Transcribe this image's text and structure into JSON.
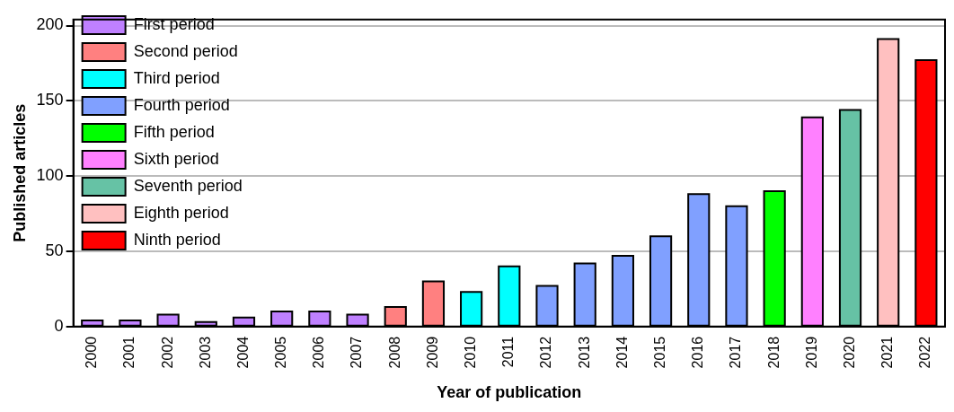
{
  "chart_data": {
    "type": "bar",
    "xlabel": "Year of publication",
    "ylabel": "Published articles",
    "categories": [
      "2000",
      "2001",
      "2002",
      "2003",
      "2004",
      "2005",
      "2006",
      "2007",
      "2008",
      "2009",
      "2010",
      "2011",
      "2012",
      "2013",
      "2014",
      "2015",
      "2016",
      "2017",
      "2018",
      "2019",
      "2020",
      "2021",
      "2022"
    ],
    "series": [
      {
        "name": "First period",
        "color": "#bf80ff",
        "values": [
          4,
          4,
          8,
          3,
          6,
          10,
          10,
          8,
          null,
          null,
          null,
          null,
          null,
          null,
          null,
          null,
          null,
          null,
          null,
          null,
          null,
          null,
          null
        ]
      },
      {
        "name": "Second period",
        "color": "#ff8080",
        "values": [
          null,
          null,
          null,
          null,
          null,
          null,
          null,
          null,
          13,
          30,
          null,
          null,
          null,
          null,
          null,
          null,
          null,
          null,
          null,
          null,
          null,
          null,
          null
        ]
      },
      {
        "name": "Third period",
        "color": "#00ffff",
        "values": [
          null,
          null,
          null,
          null,
          null,
          null,
          null,
          null,
          null,
          null,
          23,
          40,
          null,
          null,
          null,
          null,
          null,
          null,
          null,
          null,
          null,
          null,
          null
        ]
      },
      {
        "name": "Fourth period",
        "color": "#80a0ff",
        "values": [
          null,
          null,
          null,
          null,
          null,
          null,
          null,
          null,
          null,
          null,
          null,
          null,
          27,
          42,
          47,
          60,
          88,
          80,
          null,
          null,
          null,
          null,
          null
        ]
      },
      {
        "name": "Fifth period",
        "color": "#00ff00",
        "values": [
          null,
          null,
          null,
          null,
          null,
          null,
          null,
          null,
          null,
          null,
          null,
          null,
          null,
          null,
          null,
          null,
          null,
          null,
          90,
          null,
          null,
          null,
          null
        ]
      },
      {
        "name": "Sixth period",
        "color": "#ff80ff",
        "values": [
          null,
          null,
          null,
          null,
          null,
          null,
          null,
          null,
          null,
          null,
          null,
          null,
          null,
          null,
          null,
          null,
          null,
          null,
          null,
          139,
          null,
          null,
          null
        ]
      },
      {
        "name": "Seventh period",
        "color": "#66c2a5",
        "values": [
          null,
          null,
          null,
          null,
          null,
          null,
          null,
          null,
          null,
          null,
          null,
          null,
          null,
          null,
          null,
          null,
          null,
          null,
          null,
          null,
          144,
          null,
          null
        ]
      },
      {
        "name": "Eighth period",
        "color": "#ffc0c0",
        "values": [
          null,
          null,
          null,
          null,
          null,
          null,
          null,
          null,
          null,
          null,
          null,
          null,
          null,
          null,
          null,
          null,
          null,
          null,
          null,
          null,
          null,
          191,
          null
        ]
      },
      {
        "name": "Ninth period",
        "color": "#ff0000",
        "values": [
          null,
          null,
          null,
          null,
          null,
          null,
          null,
          null,
          null,
          null,
          null,
          null,
          null,
          null,
          null,
          null,
          null,
          null,
          null,
          null,
          null,
          null,
          177
        ]
      }
    ],
    "ylim": [
      0,
      204
    ],
    "yticks": [
      0,
      50,
      100,
      150,
      200
    ],
    "grid": "y",
    "legend": "top left"
  }
}
